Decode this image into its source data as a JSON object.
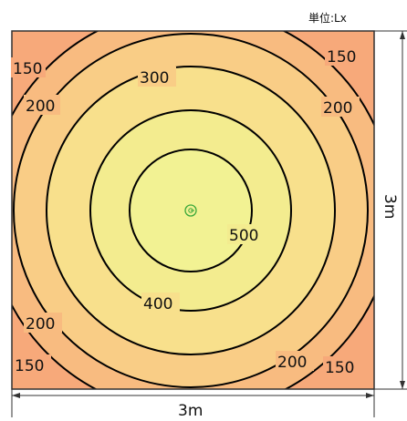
{
  "unit_label": "単位:Lx",
  "dimension_width": "3m",
  "dimension_height": "3m",
  "colors": {
    "band_150": "#f7a97a",
    "band_200": "#f8bb80",
    "band_300": "#f9cd86",
    "band_400": "#f8e08c",
    "band_500": "#f3ec8f",
    "center": "#f2f293",
    "line": "#000000",
    "frame": "#333333",
    "luminaire": "#3aa83a"
  },
  "contours": [
    {
      "value": 150
    },
    {
      "value": 200
    },
    {
      "value": 300
    },
    {
      "value": 400
    },
    {
      "value": 500
    }
  ],
  "labels": {
    "l150_tl": "150",
    "l150_tr": "150",
    "l150_bl": "150",
    "l150_br": "150",
    "l200_tl": "200",
    "l200_tr": "200",
    "l200_bl": "200",
    "l200_br": "200",
    "l300": "300",
    "l400": "400",
    "l500": "500"
  },
  "luminaire_icon": "luminaire-symbol-icon"
}
